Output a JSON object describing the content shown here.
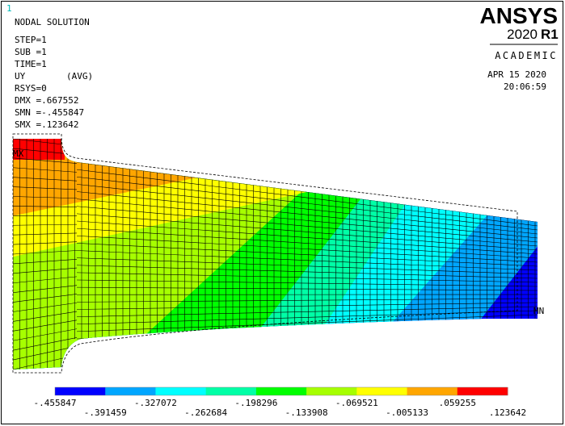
{
  "window_number": "1",
  "header": {
    "title": "NODAL SOLUTION",
    "step": "STEP=1",
    "substep": "SUB =1",
    "time": "TIME=1",
    "quantity": "UY",
    "averaging": "(AVG)",
    "rsys": "RSYS=0",
    "dmx": "DMX =.667552",
    "smn": "SMN =-.455847",
    "smx": "SMX =.123642"
  },
  "logo": {
    "brand": "ANSYS",
    "version": "2020",
    "release": "R1",
    "edition": "ACADEMIC"
  },
  "timestamp": {
    "date": "APR 15 2020",
    "time": "20:06:59"
  },
  "markers": {
    "max": "MX",
    "min": "MN"
  },
  "legend": {
    "labels": [
      "-.455847",
      "-.391459",
      "-.327072",
      "-.262684",
      "-.198296",
      "-.133908",
      "-.069521",
      "-.005133",
      ".059255",
      ".123642"
    ],
    "colors": [
      "#0000ff",
      "#00a6ff",
      "#00ffff",
      "#00ffa6",
      "#00ff00",
      "#a6ff00",
      "#ffff00",
      "#ffa600",
      "#ff0000"
    ]
  }
}
